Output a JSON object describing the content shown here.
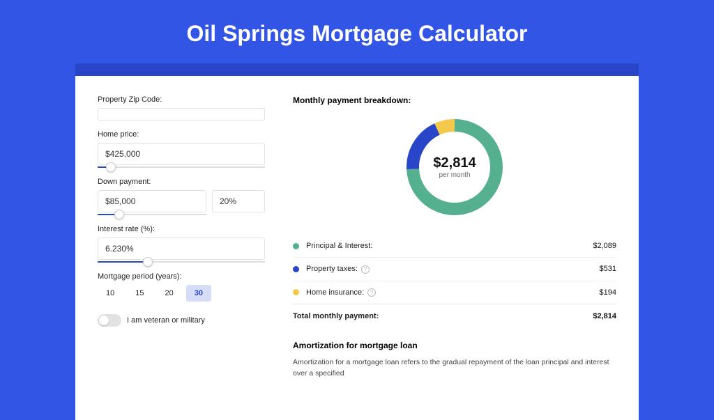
{
  "title": "Oil Springs Mortgage Calculator",
  "colors": {
    "page_bg": "#3355e6",
    "inner_bg": "#2a46c8",
    "card_bg": "#ffffff",
    "slider_fill": "#2a46c8",
    "active_pill_bg": "#d6ddf7",
    "active_pill_text": "#2a46c8"
  },
  "form": {
    "zip": {
      "label": "Property Zip Code:",
      "value": ""
    },
    "price": {
      "label": "Home price:",
      "value": "$425,000",
      "slider_pct": 8
    },
    "down": {
      "label": "Down payment:",
      "value": "$85,000",
      "pct_value": "20%",
      "slider_pct": 20
    },
    "rate": {
      "label": "Interest rate (%):",
      "value": "6.230%",
      "slider_pct": 30
    },
    "period": {
      "label": "Mortgage period (years):",
      "options": [
        "10",
        "15",
        "20",
        "30"
      ],
      "active_index": 3
    },
    "veteran": {
      "label": "I am veteran or military",
      "on": false
    }
  },
  "breakdown": {
    "title": "Monthly payment breakdown:",
    "donut": {
      "amount": "$2,814",
      "sub": "per month",
      "segments": [
        {
          "value": 2089,
          "color": "#54b08f"
        },
        {
          "value": 531,
          "color": "#2a46c8"
        },
        {
          "value": 194,
          "color": "#f4c94b"
        }
      ],
      "ring_width": 18,
      "radius": 60
    },
    "rows": [
      {
        "label": "Principal & Interest:",
        "value": "$2,089",
        "color": "#54b08f",
        "info": false
      },
      {
        "label": "Property taxes:",
        "value": "$531",
        "color": "#2a46c8",
        "info": true
      },
      {
        "label": "Home insurance:",
        "value": "$194",
        "color": "#f4c94b",
        "info": true
      }
    ],
    "total": {
      "label": "Total monthly payment:",
      "value": "$2,814"
    }
  },
  "amortization": {
    "title": "Amortization for mortgage loan",
    "text": "Amortization for a mortgage loan refers to the gradual repayment of the loan principal and interest over a specified"
  }
}
